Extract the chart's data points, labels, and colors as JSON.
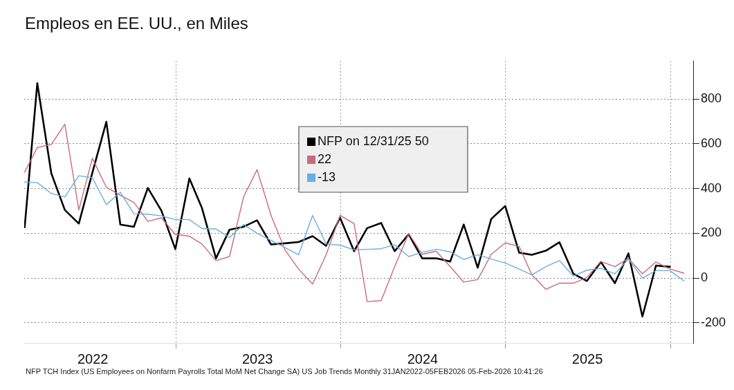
{
  "chart_data": {
    "type": "line",
    "title": "Empleos en EE. UU., en Miles",
    "x": [
      "2022-01-31",
      "2022-02-28",
      "2022-03-31",
      "2022-04-30",
      "2022-05-31",
      "2022-06-30",
      "2022-07-31",
      "2022-08-31",
      "2022-09-30",
      "2022-10-31",
      "2022-11-30",
      "2022-12-31",
      "2023-01-31",
      "2023-02-28",
      "2023-03-31",
      "2023-04-30",
      "2023-05-31",
      "2023-06-30",
      "2023-07-31",
      "2023-08-31",
      "2023-09-30",
      "2023-10-31",
      "2023-11-30",
      "2023-12-31",
      "2024-01-31",
      "2024-02-29",
      "2024-03-31",
      "2024-04-30",
      "2024-05-31",
      "2024-06-30",
      "2024-07-31",
      "2024-08-31",
      "2024-09-30",
      "2024-10-31",
      "2024-11-30",
      "2024-12-31",
      "2025-01-31",
      "2025-02-28",
      "2025-03-31",
      "2025-04-30",
      "2025-05-31",
      "2025-06-30",
      "2025-07-31",
      "2025-08-31",
      "2025-09-30",
      "2025-10-31",
      "2025-11-30",
      "2025-12-31",
      "2026-01-31"
    ],
    "series": [
      {
        "name": "NFP on 12/31/25 50",
        "color": "#000000",
        "values": [
          227,
          870,
          468,
          304,
          243,
          470,
          698,
          239,
          229,
          402,
          301,
          129,
          445,
          312,
          88,
          216,
          229,
          258,
          150,
          155,
          161,
          187,
          144,
          269,
          120,
          223,
          246,
          120,
          195,
          88,
          88,
          74,
          239,
          46,
          264,
          322,
          113,
          104,
          122,
          160,
          19,
          -13,
          72,
          -23,
          110,
          -172,
          56,
          50,
          null
        ]
      },
      {
        "name": "22",
        "color": "#c86a7e",
        "values": [
          473,
          583,
          597,
          687,
          304,
          535,
          405,
          370,
          338,
          253,
          269,
          195,
          187,
          152,
          78,
          96,
          362,
          484,
          280,
          126,
          40,
          -27,
          104,
          280,
          243,
          -105,
          -101,
          51,
          199,
          106,
          120,
          51,
          -18,
          -7,
          106,
          157,
          141,
          14,
          -50,
          -23,
          -23,
          3,
          74,
          51,
          88,
          19,
          72,
          40,
          22
        ]
      },
      {
        "name": "-13",
        "color": "#6aaee0",
        "values": [
          429,
          426,
          378,
          362,
          457,
          448,
          328,
          383,
          287,
          285,
          278,
          261,
          261,
          221,
          219,
          181,
          239,
          200,
          168,
          136,
          104,
          280,
          152,
          147,
          126,
          128,
          131,
          149,
          96,
          115,
          129,
          117,
          83,
          104,
          85,
          67,
          40,
          14,
          51,
          78,
          9,
          35,
          43,
          19,
          85,
          0,
          33,
          33,
          -13
        ]
      }
    ],
    "xlim": [
      "2022-01-30",
      "2026-02-22"
    ],
    "xticks": [
      {
        "value": "2022-07-01",
        "label": "2022"
      },
      {
        "value": "2023-01-01",
        "label": null
      },
      {
        "value": "2023-07-01",
        "label": "2023"
      },
      {
        "value": "2024-01-01",
        "label": null
      },
      {
        "value": "2024-07-01",
        "label": "2024"
      },
      {
        "value": "2025-01-01",
        "label": null
      },
      {
        "value": "2025-07-01",
        "label": "2025"
      },
      {
        "value": "2026-01-01",
        "label": null
      }
    ],
    "ylim": [
      -290,
      970
    ],
    "yticks": [
      -200,
      0,
      200,
      400,
      600,
      800
    ],
    "grid": true,
    "legend": "top",
    "marker": "none",
    "line_style": "solid",
    "annotations": [
      "NFP TCH Index (US Employees on Nonfarm Payrolls Total MoM Net Change SA) US Job Trends Monthly 31JAN2022-05FEB2026 05-Feb-2026 10:41:26"
    ]
  }
}
